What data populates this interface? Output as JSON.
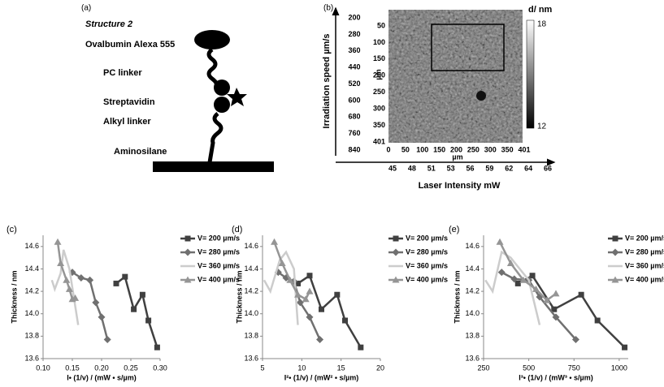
{
  "panel_a": {
    "label": "(a)",
    "title": "Structure 2",
    "labels": [
      "Ovalbumin Alexa 555",
      "PC linker",
      "Streptavidin",
      "Alkyl linker",
      "Aminosilane"
    ]
  },
  "panel_b": {
    "label": "(b)",
    "y_unit": "µm",
    "y_ticks": [
      50,
      100,
      150,
      200,
      250,
      300,
      350,
      401
    ],
    "x_unit": "µm",
    "x_ticks": [
      0,
      50,
      100,
      150,
      200,
      250,
      300,
      350,
      401
    ],
    "colorbar_title": "d/ nm",
    "colorbar_max": 18,
    "colorbar_min": 12,
    "speed_title": "Irradiation speed µm/s",
    "speed_ticks": [
      200,
      280,
      360,
      440,
      520,
      600,
      680,
      760,
      840
    ],
    "intensity_title": "Laser Intensity  mW",
    "intensity_ticks": [
      45,
      48,
      51,
      53,
      56,
      59,
      62,
      64,
      66
    ]
  },
  "chart_data": [
    {
      "type": "line",
      "panel": "(c)",
      "xlabel": "I• (1/v) / (mW • s/µm)",
      "ylabel": "Thickness / nm",
      "xlim": [
        0.1,
        0.3
      ],
      "xticks": [
        {
          "value": 0.1,
          "label": "0.10"
        },
        {
          "value": 0.15,
          "label": "0.15"
        },
        {
          "value": 0.2,
          "label": "0.20"
        },
        {
          "value": 0.25,
          "label": "0.25"
        },
        {
          "value": 0.3,
          "label": "0.30"
        }
      ],
      "ylim": [
        13.6,
        14.7
      ],
      "yticks": [
        13.6,
        13.8,
        {
          "value": 14,
          "label": "14.0"
        },
        14.2,
        14.4,
        14.6
      ],
      "series": [
        {
          "name": "V= 200 µm/s",
          "color": "#404040",
          "marker": "square",
          "x": [
            0.225,
            0.24,
            0.255,
            0.27,
            0.28,
            0.295
          ],
          "values": [
            14.27,
            14.33,
            14.04,
            14.17,
            13.94,
            13.7
          ]
        },
        {
          "name": "V= 280 µm/s",
          "color": "#707070",
          "marker": "diamond",
          "x": [
            0.15,
            0.165,
            0.18,
            0.19,
            0.2,
            0.21
          ],
          "values": [
            14.37,
            14.32,
            14.3,
            14.1,
            13.97,
            13.77
          ]
        },
        {
          "name": "V= 360 µm/s",
          "color": "#cccccc",
          "marker": "none",
          "x": [
            0.115,
            0.12,
            0.13,
            0.135,
            0.145,
            0.16
          ],
          "values": [
            14.3,
            14.22,
            14.36,
            14.57,
            14.4,
            13.9
          ]
        },
        {
          "name": "V= 400 µm/s",
          "color": "#959595",
          "marker": "triangle",
          "x": [
            0.125,
            0.13,
            0.14,
            0.145,
            0.15,
            0.155
          ],
          "values": [
            14.64,
            14.45,
            14.3,
            14.22,
            14.13,
            14.14
          ]
        }
      ]
    },
    {
      "type": "line",
      "panel": "(d)",
      "xlabel": "I²• (1/v) / (mW² • s/µm)",
      "ylabel": "Thickness / nm",
      "xlim": [
        5,
        20
      ],
      "xticks": [
        5,
        10,
        15,
        20
      ],
      "ylim": [
        13.6,
        14.7
      ],
      "yticks": [
        13.6,
        13.8,
        {
          "value": 14,
          "label": "14.0"
        },
        14.2,
        14.4,
        14.6
      ],
      "series": [
        {
          "name": "V= 200 µm/s",
          "color": "#404040",
          "marker": "square",
          "x": [
            9.5,
            11,
            12.5,
            14.5,
            15.5,
            17.5
          ],
          "values": [
            14.27,
            14.34,
            14.04,
            14.17,
            13.94,
            13.7
          ]
        },
        {
          "name": "V= 280 µm/s",
          "color": "#707070",
          "marker": "diamond",
          "x": [
            7,
            8,
            9,
            9.8,
            11,
            12.3
          ],
          "values": [
            14.37,
            14.32,
            14.29,
            14.1,
            13.97,
            13.77
          ]
        },
        {
          "name": "V= 360 µm/s",
          "color": "#cccccc",
          "marker": "none",
          "x": [
            5.2,
            6,
            7.2,
            8,
            9,
            9.5
          ],
          "values": [
            14.3,
            14.2,
            14.48,
            14.55,
            14.4,
            13.9
          ]
        },
        {
          "name": "V= 400 µm/s",
          "color": "#959595",
          "marker": "triangle",
          "x": [
            6.5,
            7.5,
            8.5,
            9.5,
            10.5,
            11
          ],
          "values": [
            14.64,
            14.45,
            14.3,
            14.17,
            14.13,
            14.2
          ]
        }
      ]
    },
    {
      "type": "line",
      "panel": "(e)",
      "xlabel": "I³• (1/v) / (mW³ • s/µm)",
      "ylabel": "Thickness / nm",
      "xlim": [
        250,
        1050
      ],
      "xticks": [
        250,
        500,
        750,
        1000
      ],
      "ylim": [
        13.6,
        14.7
      ],
      "yticks": [
        13.6,
        13.8,
        {
          "value": 14,
          "label": "14.0"
        },
        14.2,
        14.4,
        14.6
      ],
      "series": [
        {
          "name": "V= 200 µm/s",
          "color": "#404040",
          "marker": "square",
          "x": [
            440,
            520,
            640,
            790,
            880,
            1030
          ],
          "values": [
            14.27,
            14.34,
            14.04,
            14.17,
            13.94,
            13.7
          ]
        },
        {
          "name": "V= 280 µm/s",
          "color": "#707070",
          "marker": "diamond",
          "x": [
            350,
            420,
            500,
            560,
            650,
            760
          ],
          "values": [
            14.37,
            14.31,
            14.3,
            14.15,
            13.97,
            13.77
          ]
        },
        {
          "name": "V= 360 µm/s",
          "color": "#cccccc",
          "marker": "none",
          "x": [
            260,
            300,
            350,
            400,
            500,
            560
          ],
          "values": [
            14.3,
            14.2,
            14.55,
            14.5,
            14.3,
            13.9
          ]
        },
        {
          "name": "V= 400 µm/s",
          "color": "#959595",
          "marker": "triangle",
          "x": [
            340,
            400,
            470,
            540,
            600,
            650
          ],
          "values": [
            14.64,
            14.45,
            14.3,
            14.22,
            14.12,
            14.18
          ]
        }
      ]
    }
  ]
}
